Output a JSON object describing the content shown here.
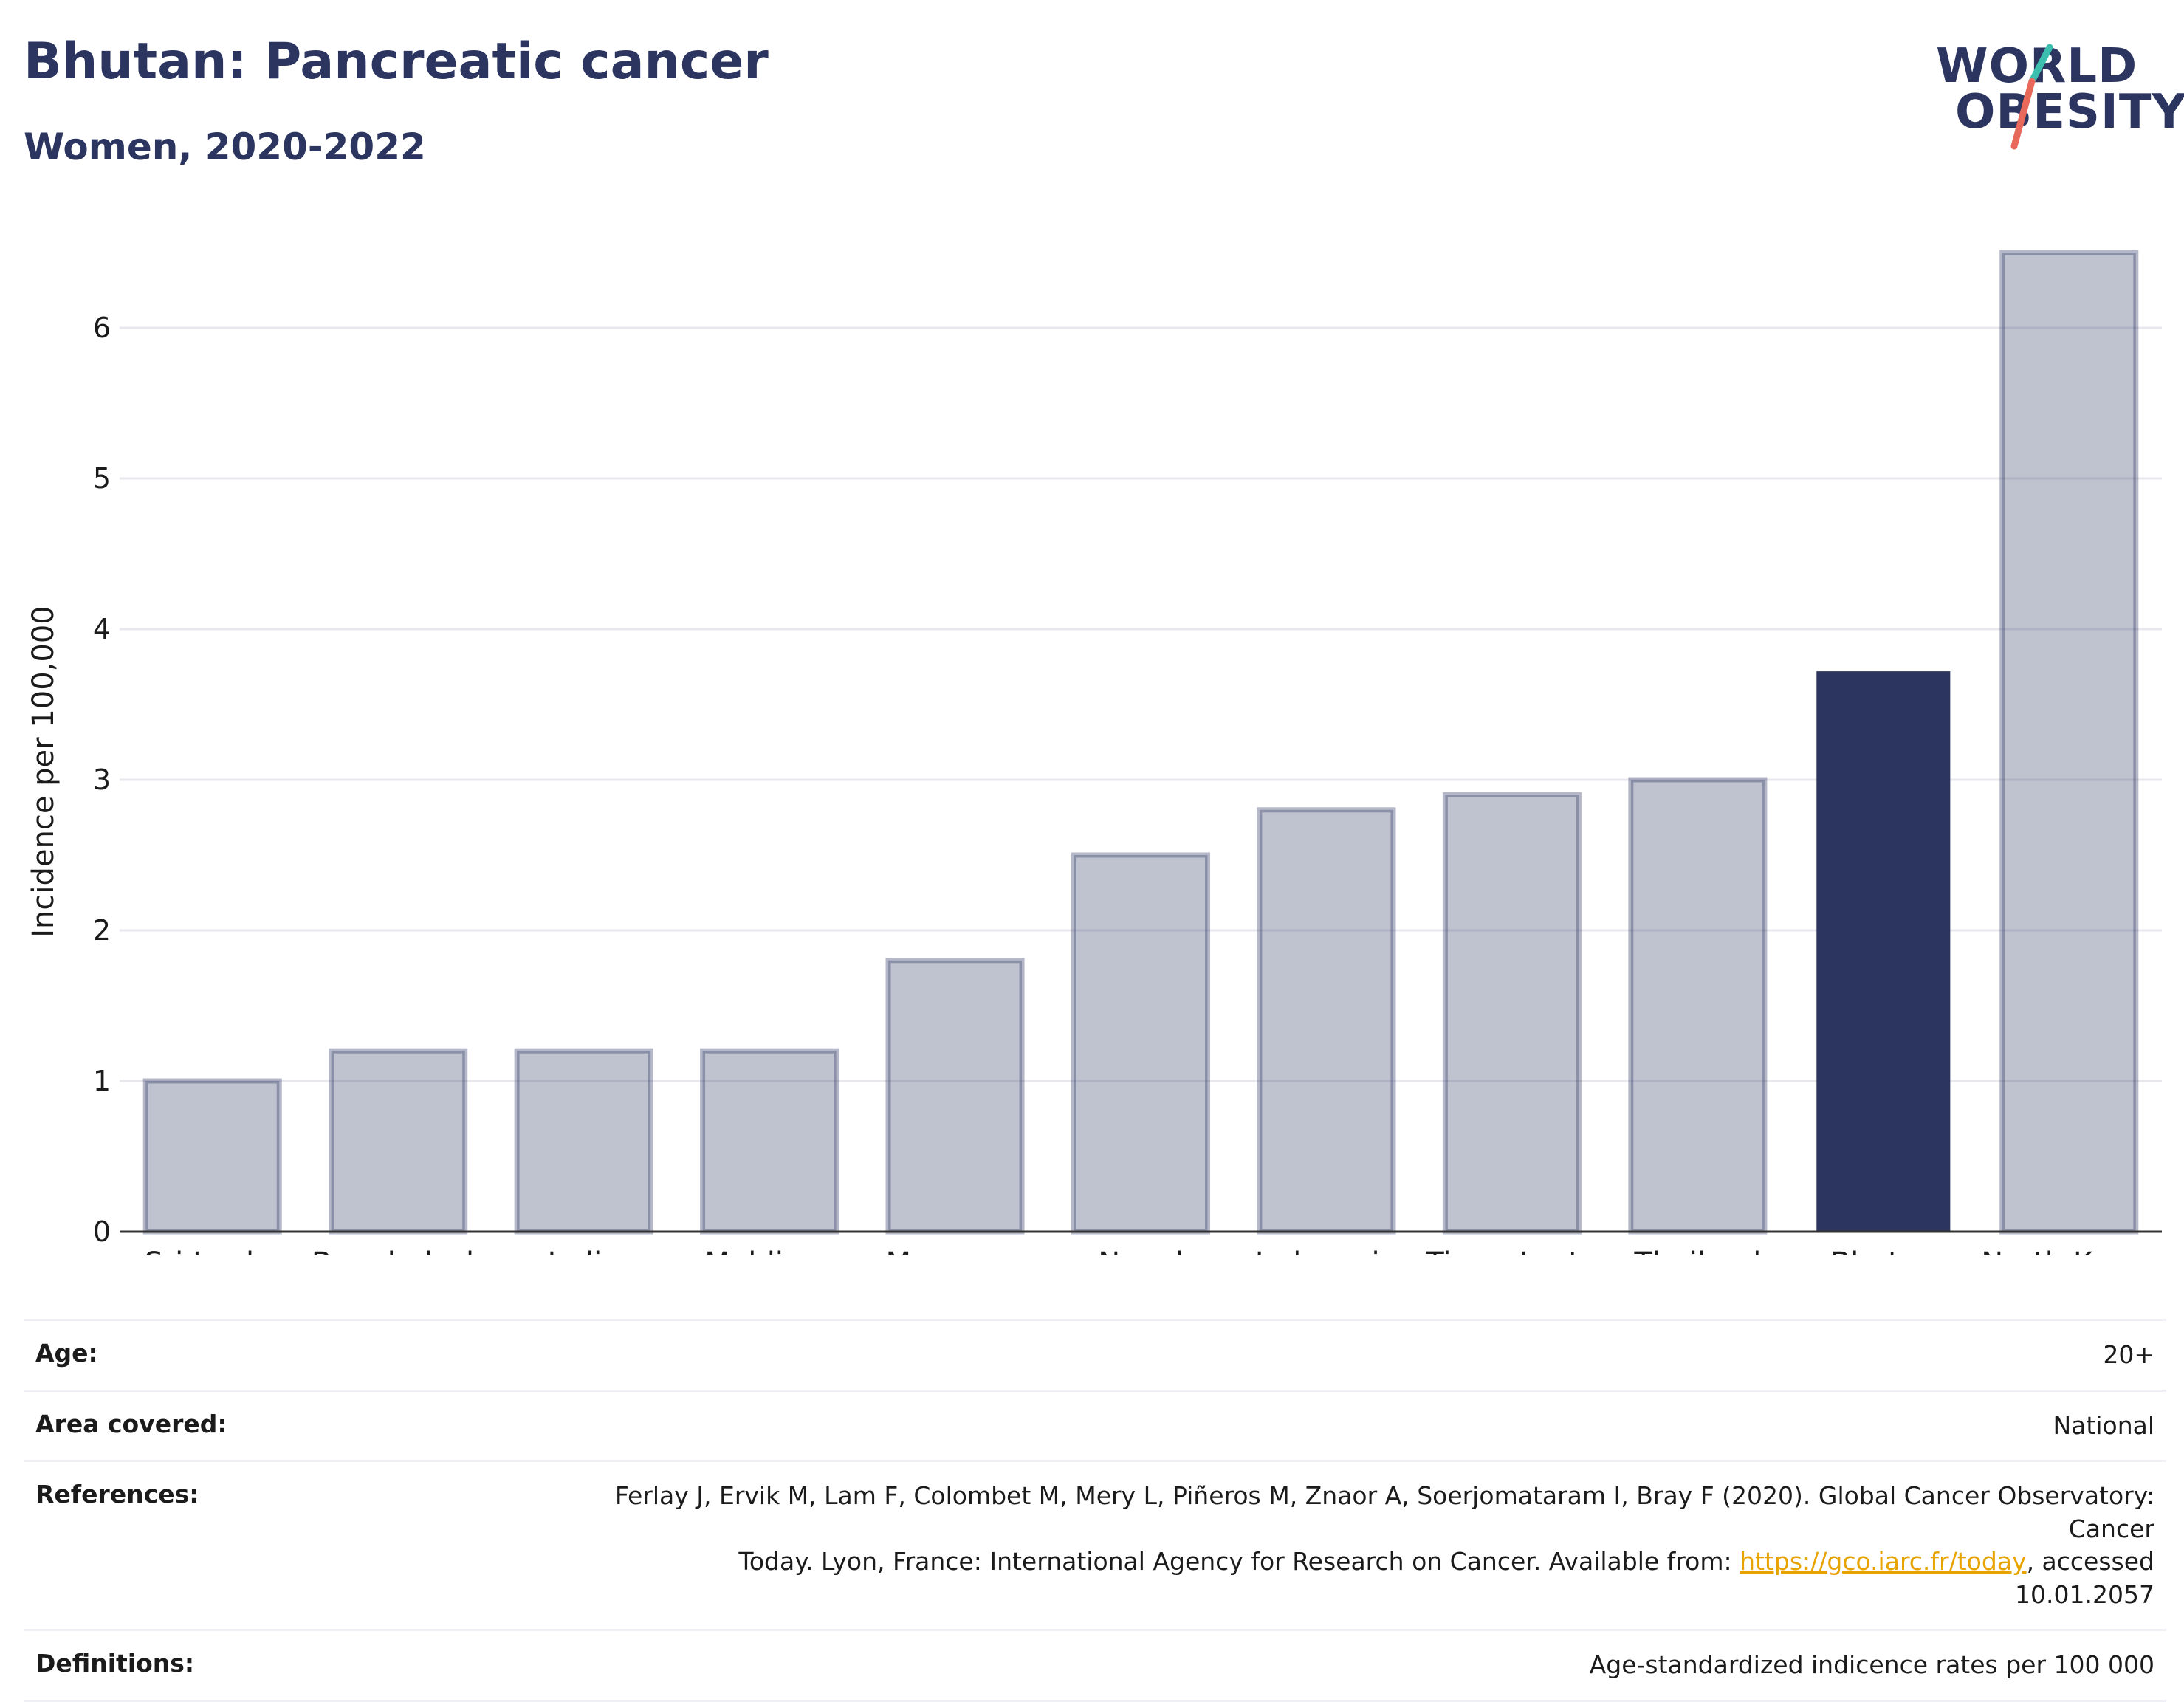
{
  "header": {
    "title": "Bhutan: Pancreatic cancer",
    "subtitle": "Women, 2020-2022"
  },
  "logo": {
    "line1": "WORLD",
    "line2": "OBESITY",
    "colors": {
      "text": "#2b3560",
      "slash_top": "#3dbfb0",
      "slash_bottom": "#e8685a"
    }
  },
  "chart_data": {
    "type": "bar",
    "categories": [
      "Sri Lanka",
      "Bangladesh",
      "India",
      "Maldives",
      "Myanmar",
      "Nepal",
      "Indonesia",
      "Timor-Leste",
      "Thailand",
      "Bhutan",
      "North Korea"
    ],
    "values": [
      1.0,
      1.2,
      1.2,
      1.2,
      1.8,
      2.5,
      2.8,
      2.9,
      3.0,
      3.72,
      6.5
    ],
    "highlight": "Bhutan",
    "xlabel": "",
    "ylabel": "Incidence per 100,000",
    "ylim": [
      0,
      6.5
    ],
    "yticks": [
      0,
      1,
      2,
      3,
      4,
      5,
      6
    ],
    "grid": true,
    "colors": {
      "bar": "#2b3560",
      "bar_fill_opacity": 0.3,
      "bar_stroke_opacity": 0.35,
      "highlight": "#2b3560",
      "grid": "#e8e8ee",
      "axis": "#333333"
    }
  },
  "info": {
    "age": {
      "label": "Age:",
      "value": "20+"
    },
    "area": {
      "label": "Area covered:",
      "value": "National"
    },
    "references": {
      "label": "References:",
      "text_line1": "Ferlay J, Ervik M, Lam F, Colombet M, Mery L, Piñeros M, Znaor A, Soerjomataram I, Bray F (2020). Global Cancer Observatory: Cancer",
      "text_before_link": "Today. Lyon, France: International Agency for Research on Cancer. Available from: ",
      "link": "https://gco.iarc.fr/today",
      "text_after_link": ", accessed 10.01.2057"
    },
    "definitions": {
      "label": "Definitions:",
      "value": "Age-standardized indicence rates per 100 000"
    }
  }
}
